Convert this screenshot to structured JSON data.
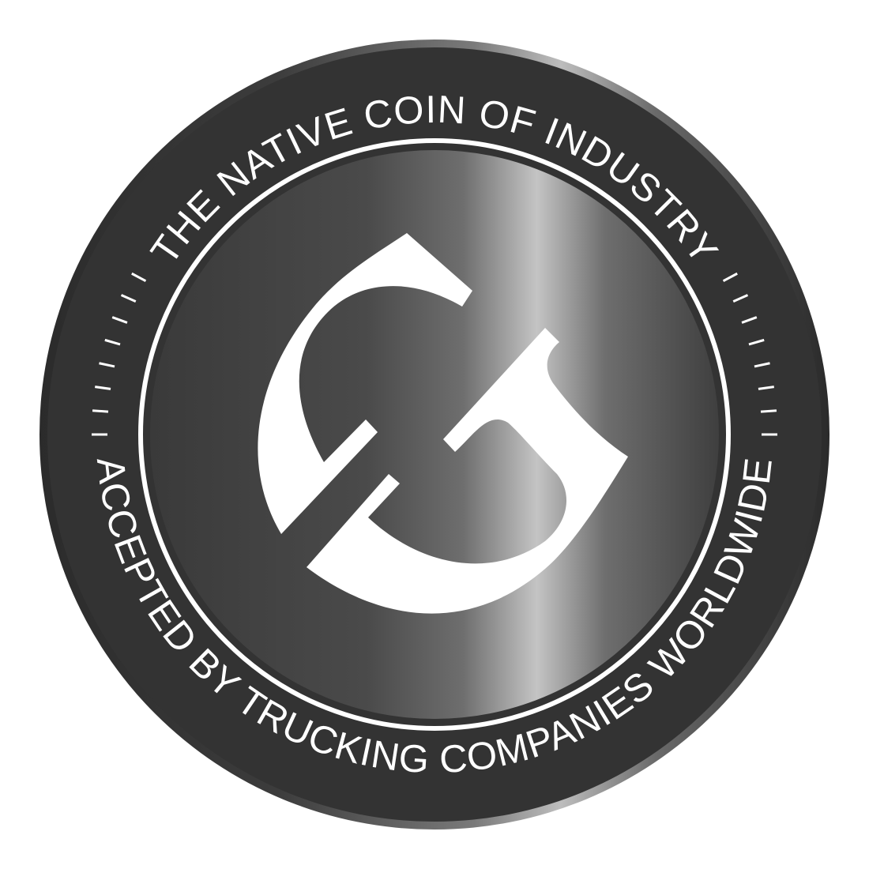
{
  "coin": {
    "top_text": "THE NATIVE COIN OF INDUSTRY",
    "bottom_text": "ACCEPTED BY TRUCKING COMPANIES WORLDWIDE",
    "logo_icon": "stylized-G-monogram-icon",
    "colors": {
      "background": "#ffffff",
      "rim_dark": "#2b2b2b",
      "rim_light": "#bdbdbd",
      "band": "#333333",
      "face_dark": "#3a3a3a",
      "face_highlight": "#c4c4c4",
      "foreground": "#ffffff"
    }
  }
}
